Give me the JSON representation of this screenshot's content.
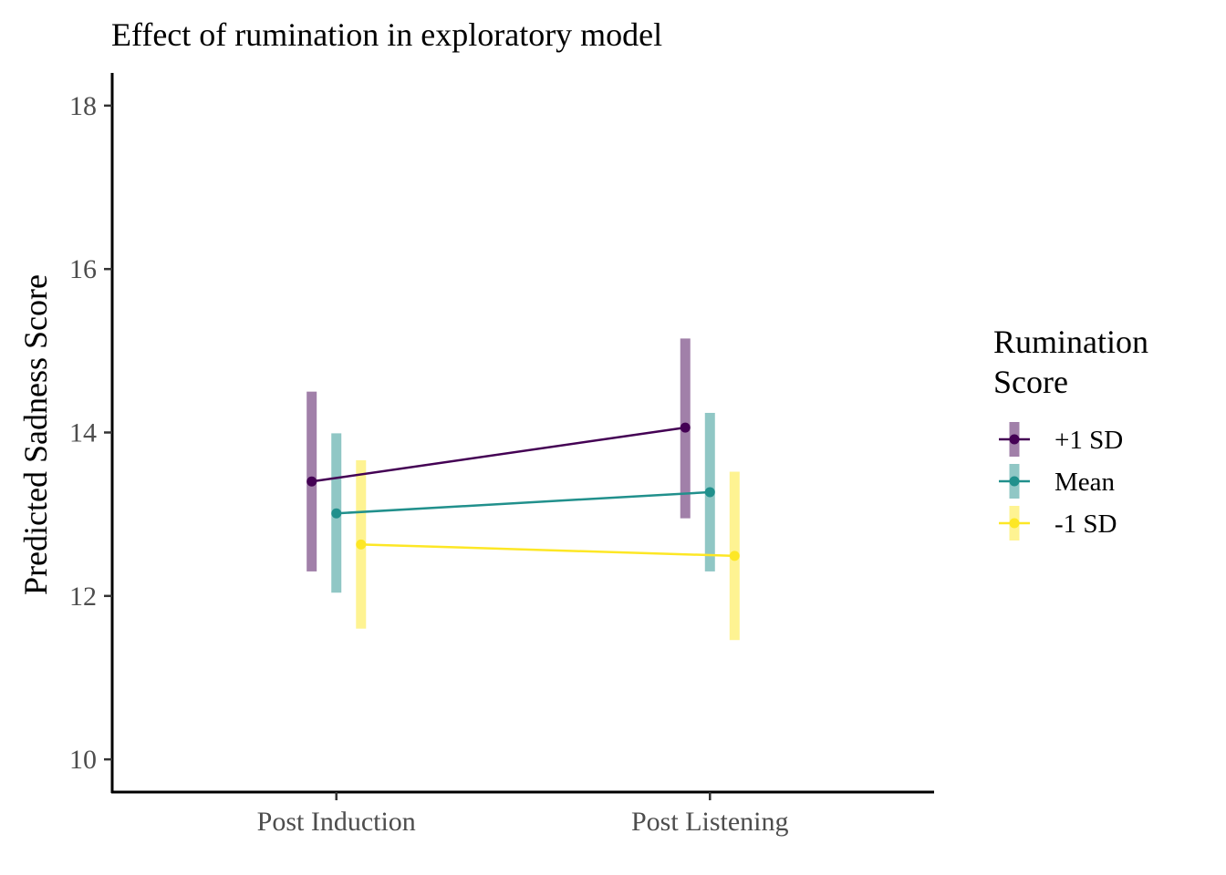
{
  "chart_data": {
    "type": "line",
    "title": "Effect of rumination in exploratory model",
    "xlabel": "",
    "ylabel": "Predicted Sadness Score",
    "categories": [
      "Post Induction",
      "Post Listening"
    ],
    "ylim": [
      9.6,
      18.4
    ],
    "yticks": [
      10,
      12,
      14,
      16,
      18
    ],
    "grid": false,
    "legend": {
      "title_lines": [
        "Rumination",
        "Score"
      ],
      "position": "right"
    },
    "series": [
      {
        "name": "+1 SD",
        "color": "#440154",
        "values": [
          13.4,
          14.06
        ],
        "ci_low": [
          12.3,
          12.95
        ],
        "ci_high": [
          14.5,
          15.15
        ]
      },
      {
        "name": "Mean",
        "color": "#21908C",
        "values": [
          13.01,
          13.27
        ],
        "ci_low": [
          12.04,
          12.3
        ],
        "ci_high": [
          13.99,
          14.24
        ]
      },
      {
        "name": "-1 SD",
        "color": "#FDE725",
        "values": [
          12.63,
          12.49
        ],
        "ci_low": [
          11.6,
          11.46
        ],
        "ci_high": [
          13.66,
          13.52
        ]
      }
    ]
  }
}
